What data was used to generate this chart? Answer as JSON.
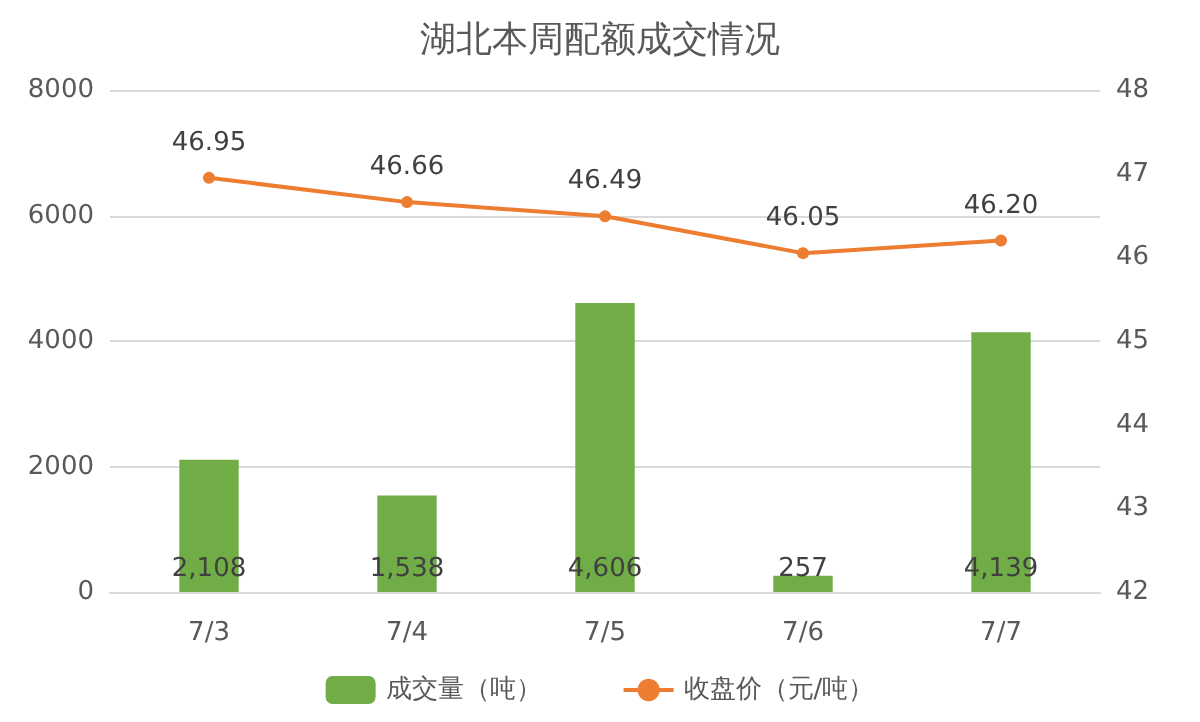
{
  "chart_data": {
    "type": "bar",
    "title": "湖北本周配额成交情况",
    "categories": [
      "7/3",
      "7/4",
      "7/5",
      "7/6",
      "7/7"
    ],
    "series": [
      {
        "name": "成交量（吨）",
        "color": "#70ad47",
        "values": [
          2108,
          1538,
          4606,
          257,
          4139
        ],
        "value_labels": [
          "2,108",
          "1,538",
          "4,606",
          "257",
          "4,139"
        ]
      },
      {
        "name": "收盘价（元/吨）",
        "type": "line",
        "axis": "y2",
        "color": "#ed7d31",
        "marker": "circle",
        "values": [
          46.95,
          46.66,
          46.49,
          46.05,
          46.2
        ],
        "value_labels": [
          "46.95",
          "46.66",
          "46.49",
          "46.05",
          "46.20"
        ]
      }
    ],
    "ylim": [
      0,
      8000
    ],
    "yticks": [
      0,
      2000,
      4000,
      6000,
      8000
    ],
    "y2lim": [
      42,
      48
    ],
    "y2ticks": [
      42,
      43,
      44,
      45,
      46,
      47,
      48
    ],
    "grid": "y",
    "legend": "bottom"
  }
}
